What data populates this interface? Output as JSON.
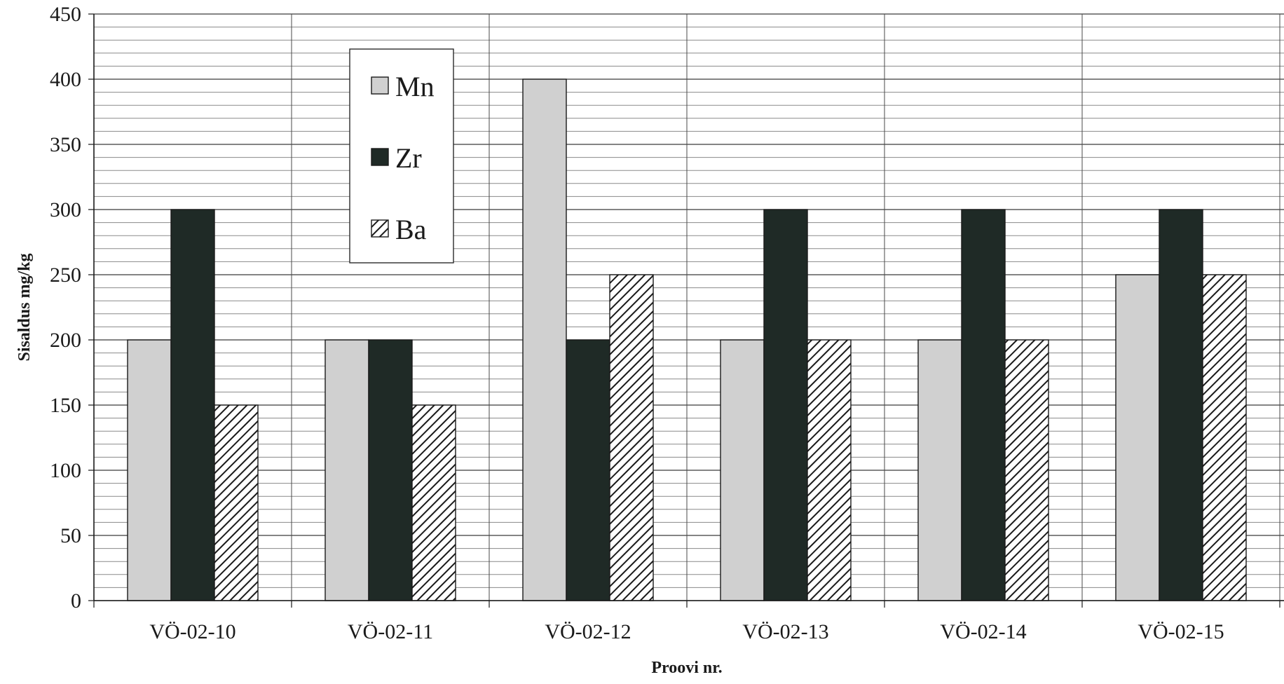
{
  "chart_data": {
    "type": "bar",
    "title": "",
    "xlabel": "Proovi nr.",
    "ylabel": "Sisaldus mg/kg",
    "ylim": [
      0,
      450
    ],
    "ytick_step": 50,
    "minor_grid_step": 10,
    "grid": true,
    "legend_position": "top-left",
    "categories": [
      "VÖ-02-10",
      "VÖ-02-11",
      "VÖ-02-12",
      "VÖ-02-13",
      "VÖ-02-14",
      "VÖ-02-15"
    ],
    "series": [
      {
        "name": "Mn",
        "color": "#d0d0d0",
        "pattern": "solid",
        "values": [
          200,
          200,
          400,
          200,
          200,
          250
        ]
      },
      {
        "name": "Zr",
        "color": "#1f2a26",
        "pattern": "solid",
        "values": [
          300,
          200,
          200,
          300,
          300,
          300
        ]
      },
      {
        "name": "Ba",
        "color": "#ffffff",
        "pattern": "hatch",
        "values": [
          150,
          150,
          250,
          200,
          200,
          250
        ]
      }
    ]
  }
}
